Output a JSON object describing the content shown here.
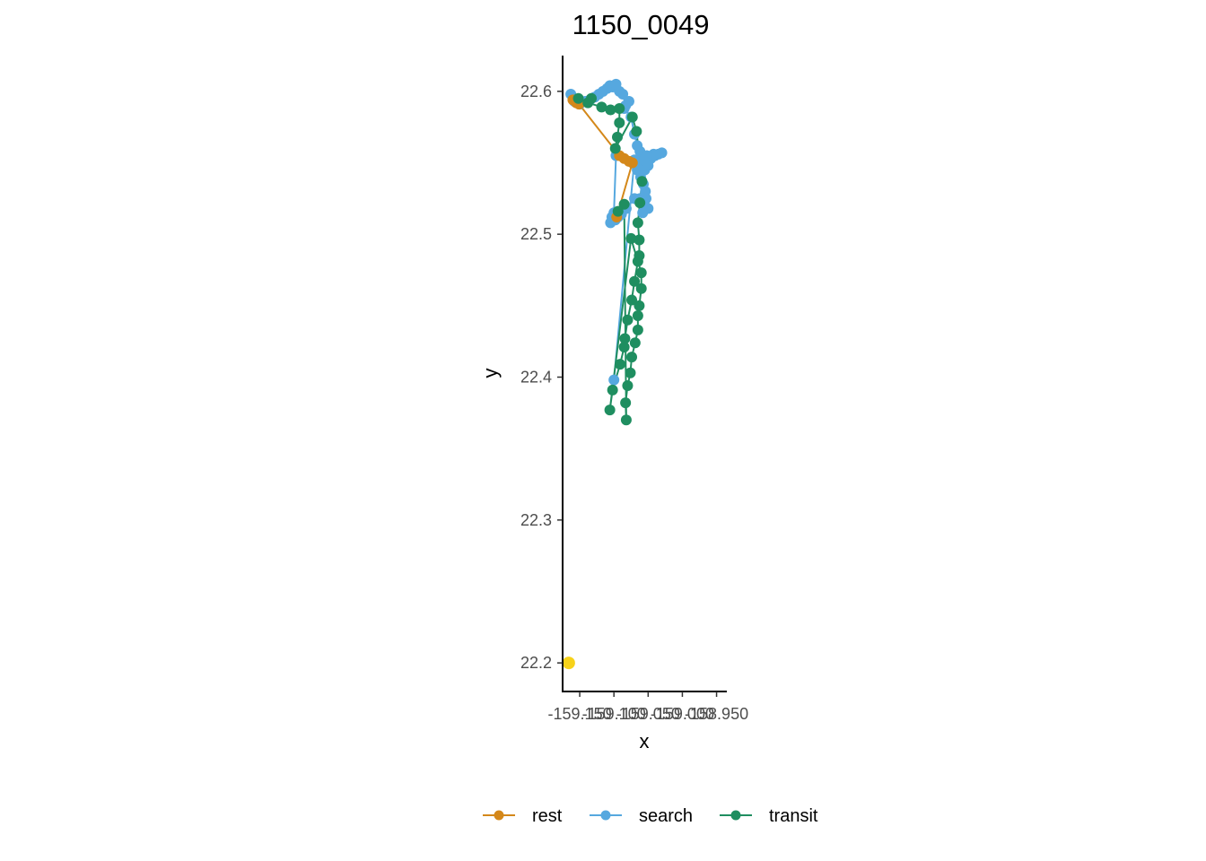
{
  "chart_data": {
    "type": "scatter",
    "title": "1150_0049",
    "xlabel": "x",
    "ylabel": "y",
    "xlim": [
      -159.175,
      -158.935
    ],
    "ylim": [
      22.18,
      22.625
    ],
    "x_tick_labels": [
      "-159.150",
      "-159.100",
      "-159.050",
      "-159.000",
      "-158.950"
    ],
    "x_tick_values": [
      -159.15,
      -159.1,
      -159.05,
      -159.0,
      -158.95
    ],
    "y_ticks": [
      22.2,
      22.3,
      22.4,
      22.5,
      22.6
    ],
    "y_tick_labels": [
      "22.2",
      "22.3",
      "22.4",
      "22.5",
      "22.6"
    ],
    "legend_position": "bottom",
    "colors": {
      "rest": "#D4881A",
      "search": "#56A8DF",
      "transit": "#1F8E60",
      "start": "#F7D21A"
    },
    "start_point": {
      "x": -159.166,
      "y": 22.2
    },
    "series": [
      {
        "name": "search",
        "points": [
          [
            -159.163,
            22.598
          ],
          [
            -159.158,
            22.593
          ],
          [
            -159.15,
            22.591
          ],
          [
            -159.142,
            22.593
          ],
          [
            -159.135,
            22.594
          ],
          [
            -159.128,
            22.596
          ],
          [
            -159.122,
            22.598
          ],
          [
            -159.116,
            22.6
          ],
          [
            -159.11,
            22.602
          ],
          [
            -159.106,
            22.604
          ],
          [
            -159.102,
            22.603
          ],
          [
            -159.097,
            22.605
          ],
          [
            -159.092,
            22.6
          ],
          [
            -159.087,
            22.598
          ],
          [
            -159.083,
            22.59
          ],
          [
            -159.078,
            22.593
          ],
          [
            -159.085,
            22.588
          ],
          [
            -159.075,
            22.582
          ],
          [
            -159.07,
            22.57
          ],
          [
            -159.066,
            22.562
          ],
          [
            -159.062,
            22.558
          ],
          [
            -159.06,
            22.552
          ],
          [
            -159.058,
            22.548
          ],
          [
            -159.055,
            22.545
          ],
          [
            -159.05,
            22.548
          ],
          [
            -159.046,
            22.553
          ],
          [
            -159.04,
            22.555
          ],
          [
            -159.035,
            22.556
          ],
          [
            -159.03,
            22.557
          ],
          [
            -159.042,
            22.556
          ],
          [
            -159.052,
            22.555
          ],
          [
            -159.063,
            22.551
          ],
          [
            -159.066,
            22.545
          ],
          [
            -159.061,
            22.54
          ],
          [
            -159.057,
            22.535
          ],
          [
            -159.054,
            22.53
          ],
          [
            -159.053,
            22.525
          ],
          [
            -159.055,
            22.52
          ],
          [
            -159.058,
            22.515
          ],
          [
            -159.05,
            22.518
          ],
          [
            -159.062,
            22.525
          ],
          [
            -159.07,
            22.525
          ],
          [
            -159.082,
            22.518
          ],
          [
            -159.089,
            22.514
          ],
          [
            -159.094,
            22.512
          ],
          [
            -159.098,
            22.51
          ],
          [
            -159.103,
            22.512
          ],
          [
            -159.105,
            22.508
          ],
          [
            -159.1,
            22.515
          ],
          [
            -159.097,
            22.555
          ],
          [
            -159.067,
            22.548
          ],
          [
            -159.06,
            22.544
          ],
          [
            -159.056,
            22.552
          ],
          [
            -159.07,
            22.552
          ],
          [
            -159.1,
            22.398
          ]
        ]
      },
      {
        "name": "rest",
        "points": [
          [
            -159.16,
            22.594
          ],
          [
            -159.155,
            22.592
          ],
          [
            -159.151,
            22.591
          ],
          [
            -159.092,
            22.555
          ],
          [
            -159.085,
            22.553
          ],
          [
            -159.078,
            22.551
          ],
          [
            -159.073,
            22.55
          ],
          [
            -159.096,
            22.512
          ]
        ]
      },
      {
        "name": "transit",
        "points": [
          [
            -159.152,
            22.595
          ],
          [
            -159.133,
            22.595
          ],
          [
            -159.138,
            22.592
          ],
          [
            -159.118,
            22.589
          ],
          [
            -159.105,
            22.587
          ],
          [
            -159.092,
            22.588
          ],
          [
            -159.092,
            22.578
          ],
          [
            -159.095,
            22.568
          ],
          [
            -159.098,
            22.56
          ],
          [
            -159.073,
            22.582
          ],
          [
            -159.067,
            22.572
          ],
          [
            -159.059,
            22.537
          ],
          [
            -159.062,
            22.522
          ],
          [
            -159.065,
            22.508
          ],
          [
            -159.063,
            22.496
          ],
          [
            -159.063,
            22.485
          ],
          [
            -159.065,
            22.481
          ],
          [
            -159.07,
            22.467
          ],
          [
            -159.074,
            22.454
          ],
          [
            -159.08,
            22.44
          ],
          [
            -159.084,
            22.427
          ],
          [
            -159.085,
            22.421
          ],
          [
            -159.091,
            22.409
          ],
          [
            -159.102,
            22.391
          ],
          [
            -159.106,
            22.377
          ],
          [
            -159.075,
            22.497
          ],
          [
            -159.06,
            22.473
          ],
          [
            -159.06,
            22.462
          ],
          [
            -159.063,
            22.45
          ],
          [
            -159.065,
            22.443
          ],
          [
            -159.065,
            22.433
          ],
          [
            -159.069,
            22.424
          ],
          [
            -159.074,
            22.414
          ],
          [
            -159.076,
            22.403
          ],
          [
            -159.08,
            22.394
          ],
          [
            -159.083,
            22.382
          ],
          [
            -159.082,
            22.37
          ],
          [
            -159.085,
            22.521
          ],
          [
            -159.094,
            22.516
          ]
        ]
      }
    ]
  }
}
